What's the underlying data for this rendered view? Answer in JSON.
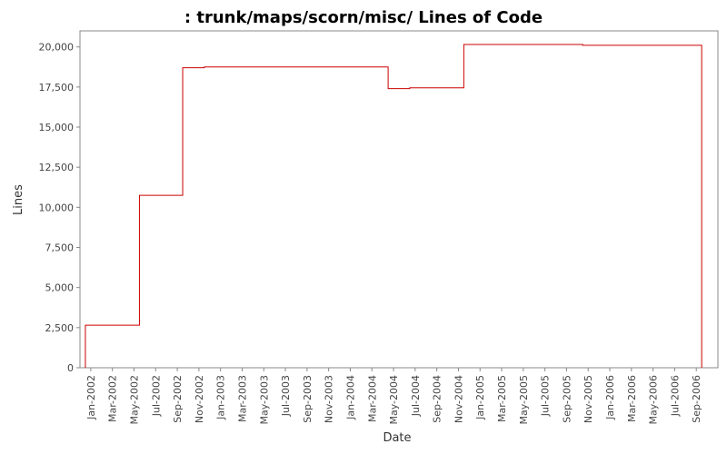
{
  "chart_data": {
    "type": "step-line",
    "title": ": trunk/maps/scorn/misc/ Lines of Code",
    "x_label": "Date",
    "y_label": "Lines",
    "series": [
      {
        "name": "Lines",
        "color": "#cc0000",
        "x": [
          "2001-12",
          "2001-12",
          "2002-05",
          "2002-09",
          "2002-11",
          "2004-04",
          "2004-06",
          "2004-11",
          "2004-11",
          "2005-10",
          "2006-09"
        ],
        "values": [
          0,
          2650,
          10750,
          18700,
          18750,
          17400,
          17450,
          19400,
          20150,
          20100,
          0
        ]
      }
    ],
    "xlim": [
      "2001-12",
      "2006-11"
    ],
    "xticks": [
      {
        "value": "2002-01",
        "label": "Jan-2002"
      },
      {
        "value": "2002-03",
        "label": "Mar-2002"
      },
      {
        "value": "2002-05",
        "label": "May-2002"
      },
      {
        "value": "2002-07",
        "label": "Jul-2002"
      },
      {
        "value": "2002-09",
        "label": "Sep-2002"
      },
      {
        "value": "2002-11",
        "label": "Nov-2002"
      },
      {
        "value": "2003-01",
        "label": "Jan-2003"
      },
      {
        "value": "2003-03",
        "label": "Mar-2003"
      },
      {
        "value": "2003-05",
        "label": "May-2003"
      },
      {
        "value": "2003-07",
        "label": "Jul-2003"
      },
      {
        "value": "2003-09",
        "label": "Sep-2003"
      },
      {
        "value": "2003-11",
        "label": "Nov-2003"
      },
      {
        "value": "2004-01",
        "label": "Jan-2004"
      },
      {
        "value": "2004-03",
        "label": "Mar-2004"
      },
      {
        "value": "2004-05",
        "label": "May-2004"
      },
      {
        "value": "2004-07",
        "label": "Jul-2004"
      },
      {
        "value": "2004-09",
        "label": "Sep-2004"
      },
      {
        "value": "2004-11",
        "label": "Nov-2004"
      },
      {
        "value": "2005-01",
        "label": "Jan-2005"
      },
      {
        "value": "2005-03",
        "label": "Mar-2005"
      },
      {
        "value": "2005-05",
        "label": "May-2005"
      },
      {
        "value": "2005-07",
        "label": "Jul-2005"
      },
      {
        "value": "2005-09",
        "label": "Sep-2005"
      },
      {
        "value": "2005-11",
        "label": "Nov-2005"
      },
      {
        "value": "2006-01",
        "label": "Jan-2006"
      },
      {
        "value": "2006-03",
        "label": "Mar-2006"
      },
      {
        "value": "2006-05",
        "label": "May-2006"
      },
      {
        "value": "2006-07",
        "label": "Jul-2006"
      },
      {
        "value": "2006-09",
        "label": "Sep-2006"
      }
    ],
    "ylim": [
      0,
      21000
    ],
    "yticks": [
      0,
      {
        "value": 2500,
        "label": "2,500"
      },
      {
        "value": 5000,
        "label": "5,000"
      },
      {
        "value": 7500,
        "label": "7,500"
      },
      {
        "value": 10000,
        "label": "10,000"
      },
      {
        "value": 12500,
        "label": "12,500"
      },
      {
        "value": 15000,
        "label": "15,000"
      },
      {
        "value": 17500,
        "label": "17,500"
      },
      {
        "value": 20000,
        "label": "20,000"
      }
    ],
    "grid": false
  }
}
